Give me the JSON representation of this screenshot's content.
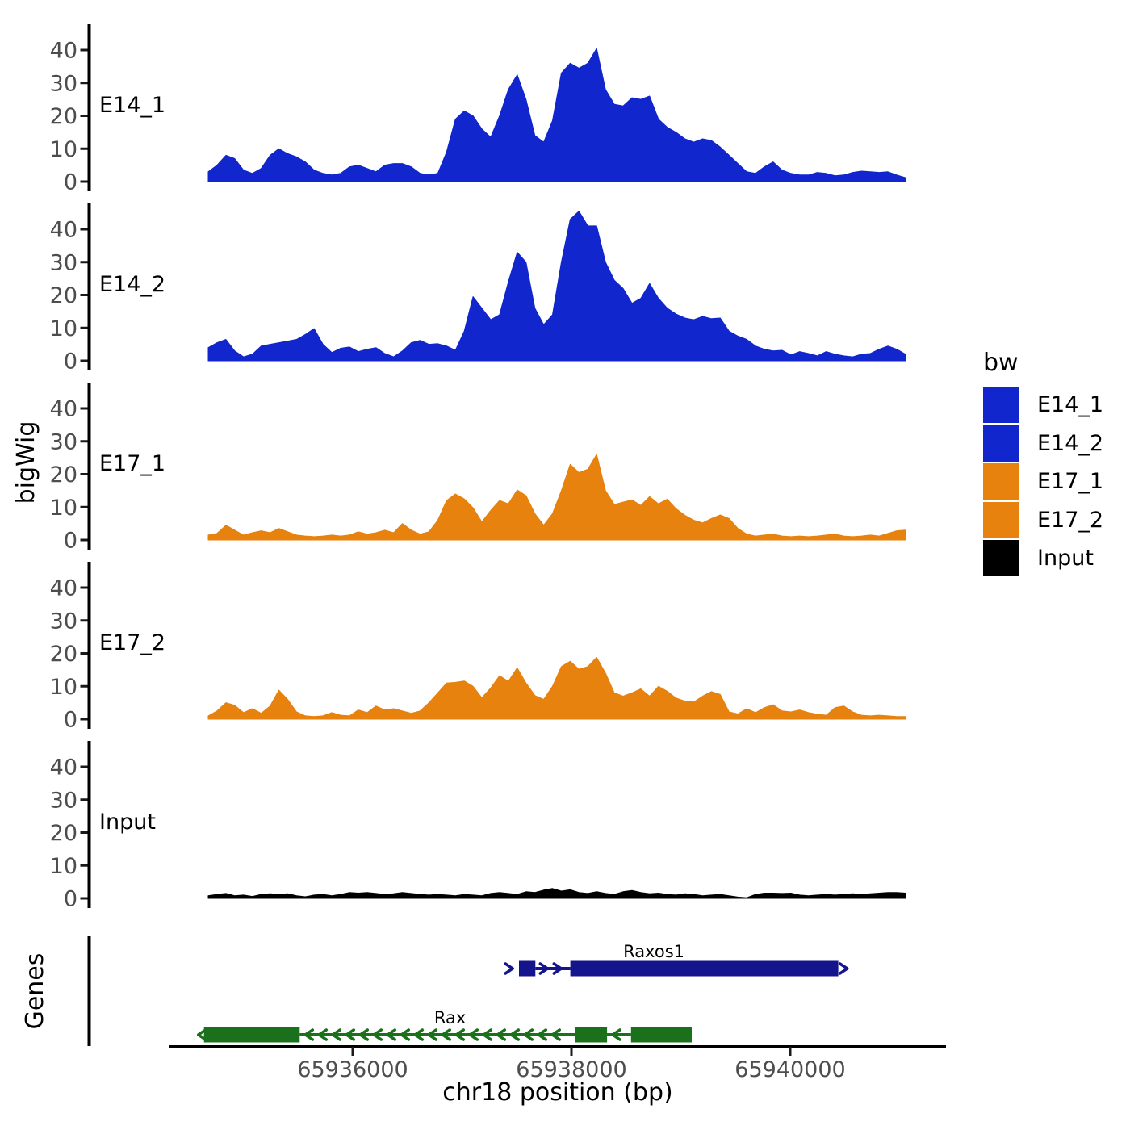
{
  "figure": {
    "y_axis_title": "bigWig",
    "genes_axis_title": "Genes",
    "x_axis_title": "chr18 position (bp)"
  },
  "legend": {
    "title": "bw",
    "items": [
      {
        "label": "E14_1",
        "color": "#1126CD"
      },
      {
        "label": "E14_2",
        "color": "#1126CD"
      },
      {
        "label": "E17_1",
        "color": "#E6820D"
      },
      {
        "label": "E17_2",
        "color": "#E6820D"
      },
      {
        "label": "Input",
        "color": "#000000"
      }
    ]
  },
  "chart_data": {
    "type": "area",
    "title": "",
    "xlabel": "chr18 position (bp)",
    "ylabel": "bigWig",
    "region": {
      "chrom": "chr18",
      "start": 65934680,
      "end": 65941060
    },
    "ylim": [
      0,
      48
    ],
    "y_ticks": [
      0,
      10,
      20,
      30,
      40
    ],
    "x_ticks": [
      {
        "pos": 65936000,
        "label": "65936000"
      },
      {
        "pos": 65938000,
        "label": "65938000"
      },
      {
        "pos": 65940000,
        "label": "65940000"
      }
    ],
    "tracks": [
      {
        "name": "E14_1",
        "color": "#1126CD",
        "values": [
          3,
          5,
          8,
          7,
          3.5,
          2.5,
          4,
          8,
          10,
          8.5,
          7.5,
          6,
          3.5,
          2.5,
          2,
          2.5,
          4.5,
          5,
          4,
          3,
          5,
          5.5,
          5.5,
          4.5,
          2.5,
          2,
          2.5,
          9,
          19,
          21.5,
          20,
          16,
          13.5,
          20,
          28,
          32.5,
          25,
          14,
          12,
          18.5,
          33,
          36,
          34.5,
          36,
          40.5,
          28,
          23.5,
          23,
          25.5,
          25,
          26,
          19,
          16.5,
          15,
          13,
          12,
          13,
          12.5,
          10.5,
          8,
          5.5,
          3,
          2.5,
          4.5,
          6,
          3.5,
          2.5,
          2,
          2,
          2.8,
          2.5,
          1.8,
          2,
          2.8,
          3.2,
          3,
          2.8,
          3,
          2,
          1.2
        ]
      },
      {
        "name": "E14_2",
        "color": "#1126CD",
        "values": [
          4,
          5.5,
          6.5,
          3,
          1.2,
          2,
          4.5,
          5,
          5.5,
          6,
          6.5,
          8,
          9.8,
          5,
          2.5,
          3.8,
          4.2,
          2.8,
          3.5,
          4,
          2.2,
          1.2,
          3,
          5.5,
          6.2,
          5,
          5.2,
          4.5,
          3.2,
          9,
          19.5,
          16,
          12.5,
          14,
          24,
          33,
          30,
          16,
          11,
          14,
          30,
          43,
          45.5,
          41,
          41,
          30,
          24.5,
          22,
          17.5,
          19,
          23.5,
          19,
          16,
          14.2,
          13,
          12.5,
          13.5,
          12.8,
          13,
          9,
          7.5,
          6.5,
          4.5,
          3.5,
          3,
          3.2,
          1.8,
          2.8,
          2.2,
          1.5,
          2.8,
          2,
          1.5,
          1.2,
          2,
          2.2,
          3.5,
          4.5,
          3.5,
          2
        ]
      },
      {
        "name": "E17_1",
        "color": "#E6820D",
        "values": [
          1.5,
          2,
          4.5,
          3,
          1.5,
          2.2,
          2.8,
          2.2,
          3.5,
          2.5,
          1.5,
          1.2,
          1,
          1.2,
          1.5,
          1.2,
          1.5,
          2.5,
          1.8,
          2.2,
          3,
          2.2,
          5,
          3,
          1.8,
          2.5,
          6,
          12,
          14,
          12.5,
          9.8,
          5.5,
          9,
          12,
          11,
          15.2,
          13.5,
          8,
          4.5,
          8,
          15,
          23,
          20.5,
          21.5,
          26,
          15,
          10.8,
          11.5,
          12.2,
          10.5,
          13.2,
          11,
          12.4,
          9.5,
          7.5,
          6,
          5.2,
          6.5,
          7.6,
          6.5,
          3.5,
          1.8,
          1.2,
          1.5,
          1.8,
          1.2,
          1,
          1.2,
          1,
          1.2,
          1.5,
          1.8,
          1.2,
          1,
          1.2,
          1.5,
          1.2,
          2,
          2.8,
          3
        ]
      },
      {
        "name": "E17_2",
        "color": "#E6820D",
        "values": [
          1,
          2.5,
          5,
          4.2,
          2,
          3.2,
          1.8,
          4,
          8.8,
          6,
          2.2,
          1,
          0.8,
          1,
          2,
          1.2,
          1,
          2.8,
          2,
          4,
          2.8,
          3.2,
          2.5,
          1.8,
          2.5,
          5,
          8,
          11,
          11.2,
          11.6,
          10,
          6.5,
          9.5,
          13.2,
          11.5,
          15.6,
          11,
          7.2,
          6,
          10,
          16,
          17.6,
          15.2,
          16,
          18.8,
          14,
          8,
          7,
          8,
          9.2,
          7,
          10,
          8.5,
          6.4,
          5.5,
          5.2,
          7,
          8.4,
          7.5,
          2.2,
          1.6,
          3.2,
          2,
          3.5,
          4.4,
          2.5,
          2.2,
          2.8,
          2,
          1.5,
          1.2,
          3.5,
          4,
          2.2,
          1.2,
          1,
          1.2,
          1,
          0.8,
          0.8
        ]
      },
      {
        "name": "Input",
        "color": "#000000",
        "values": [
          0.8,
          1.2,
          1.5,
          0.8,
          1,
          0.6,
          1.2,
          1.4,
          1.2,
          1.4,
          0.8,
          0.5,
          1,
          1.2,
          0.8,
          1.2,
          1.8,
          1.6,
          1.8,
          1.5,
          1.2,
          1.4,
          1.8,
          1.5,
          1.2,
          1,
          1.2,
          1,
          0.8,
          1.2,
          1,
          0.8,
          1.5,
          1.8,
          1.5,
          1.2,
          2,
          1.8,
          2.5,
          3,
          2.2,
          2.6,
          1.8,
          1.5,
          2,
          1.5,
          1.2,
          2,
          2.4,
          1.8,
          1.4,
          1.6,
          1.2,
          1,
          1.4,
          1.2,
          0.8,
          1,
          1.2,
          0.8,
          0.4,
          0.2,
          1.2,
          1.6,
          1.6,
          1.5,
          1.6,
          1,
          0.8,
          1,
          1.2,
          1,
          1.2,
          1.4,
          1.2,
          1.4,
          1.6,
          1.8,
          1.8,
          1.6
        ]
      }
    ],
    "genes": [
      {
        "name": "Raxos1",
        "strand": "+",
        "color": "#14148C",
        "start": 65937470,
        "end": 65940470,
        "exons": [
          [
            65937520,
            65937670
          ],
          [
            65937990,
            65940440
          ]
        ],
        "label_pos": 65938753
      },
      {
        "name": "Rax",
        "strand": "-",
        "color": "#1B701B",
        "start": 65934640,
        "end": 65939100,
        "exons": [
          [
            65934640,
            65935515
          ],
          [
            65938030,
            65938325
          ],
          [
            65938545,
            65939100
          ]
        ],
        "label_pos": 65936890
      }
    ]
  }
}
